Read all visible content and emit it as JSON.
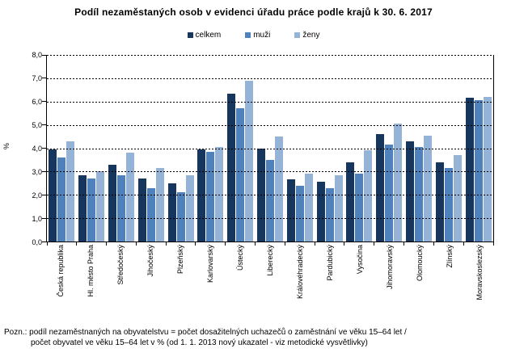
{
  "chart_data": {
    "type": "bar",
    "title": "Podíl nezaměstaných osob v evidenci úřadu práce podle krajů k 30. 6. 2017",
    "xlabel": "",
    "ylabel": "%",
    "ylim": [
      0,
      8
    ],
    "ytick_step": 1,
    "ytick_labels": [
      "0,0",
      "1,0",
      "2,0",
      "3,0",
      "4,0",
      "5,0",
      "6,0",
      "7,0",
      "8,0"
    ],
    "grid": "horizontal-dashed",
    "legend_position": "top",
    "categories": [
      "Česká republika",
      "Hl. město Praha",
      "Středočeský",
      "Jihočeský",
      "Plzeňský",
      "Karlovarský",
      "Ústecký",
      "Liberecký",
      "Královéhradecký",
      "Pardubický",
      "Vysočina",
      "Jihomoravský",
      "Olomoucký",
      "Zlínský",
      "Moravskoslezský"
    ],
    "series": [
      {
        "name": "celkem",
        "color": "#17365D",
        "values": [
          3.95,
          2.85,
          3.3,
          2.7,
          2.5,
          3.95,
          6.35,
          4.0,
          2.65,
          2.55,
          3.4,
          4.6,
          4.3,
          3.4,
          6.15
        ]
      },
      {
        "name": "muži",
        "color": "#4F81BD",
        "values": [
          3.6,
          2.7,
          2.85,
          2.3,
          2.1,
          3.85,
          5.7,
          3.5,
          2.4,
          2.3,
          2.9,
          4.15,
          4.05,
          3.15,
          6.05
        ]
      },
      {
        "name": "ženy",
        "color": "#95B3D7",
        "values": [
          4.3,
          3.0,
          3.8,
          3.15,
          2.85,
          4.05,
          6.9,
          4.5,
          2.9,
          2.85,
          3.9,
          5.05,
          4.55,
          3.7,
          6.2
        ]
      }
    ]
  },
  "footnote": {
    "line1": "Pozn.: podíl nezaměstnaných na obyvatelstvu = počet dosažitelných uchazečů o zaměstnání ve věku 15–64 let /",
    "line2": "počet obyvatel ve věku 15–64 let v % (od 1. 1. 2013 nový ukazatel - viz metodické vysvětlivky)"
  }
}
